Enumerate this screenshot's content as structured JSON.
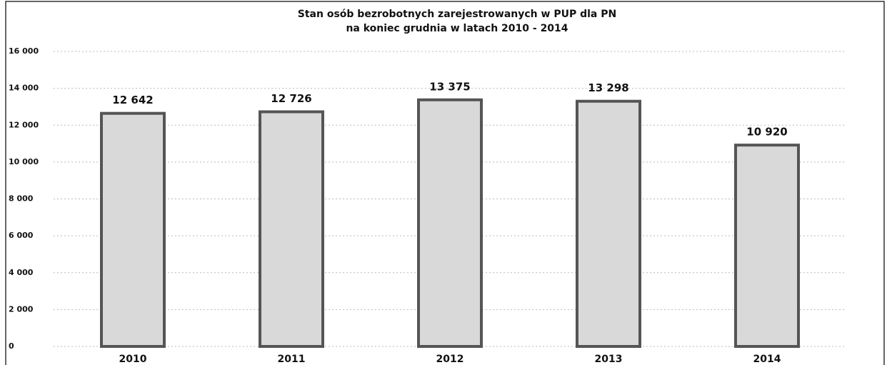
{
  "chart_data": {
    "type": "bar",
    "title": [
      "Stan osób bezrobotnych zarejestrowanych w PUP dla PN",
      "na koniec grudnia w latach 2010 - 2014"
    ],
    "categories": [
      "2010",
      "2011",
      "2012",
      "2013",
      "2014"
    ],
    "values": [
      12642,
      12726,
      13375,
      13298,
      10920
    ],
    "value_labels": [
      "12 642",
      "12 726",
      "13 375",
      "13 298",
      "10 920"
    ],
    "color": "#d9d9d9",
    "ylim": [
      0,
      16000
    ],
    "yticks": [
      0,
      {
        "value": 2000,
        "label": "2 000"
      },
      {
        "value": 4000,
        "label": "4 000"
      },
      {
        "value": 6000,
        "label": "6 000"
      },
      {
        "value": 8000,
        "label": "8 000"
      },
      {
        "value": 10000,
        "label": "10 000"
      },
      {
        "value": 12000,
        "label": "12 000"
      },
      {
        "value": 14000,
        "label": "14 000"
      },
      {
        "value": 16000,
        "label": "16 000"
      }
    ],
    "grid": true
  }
}
